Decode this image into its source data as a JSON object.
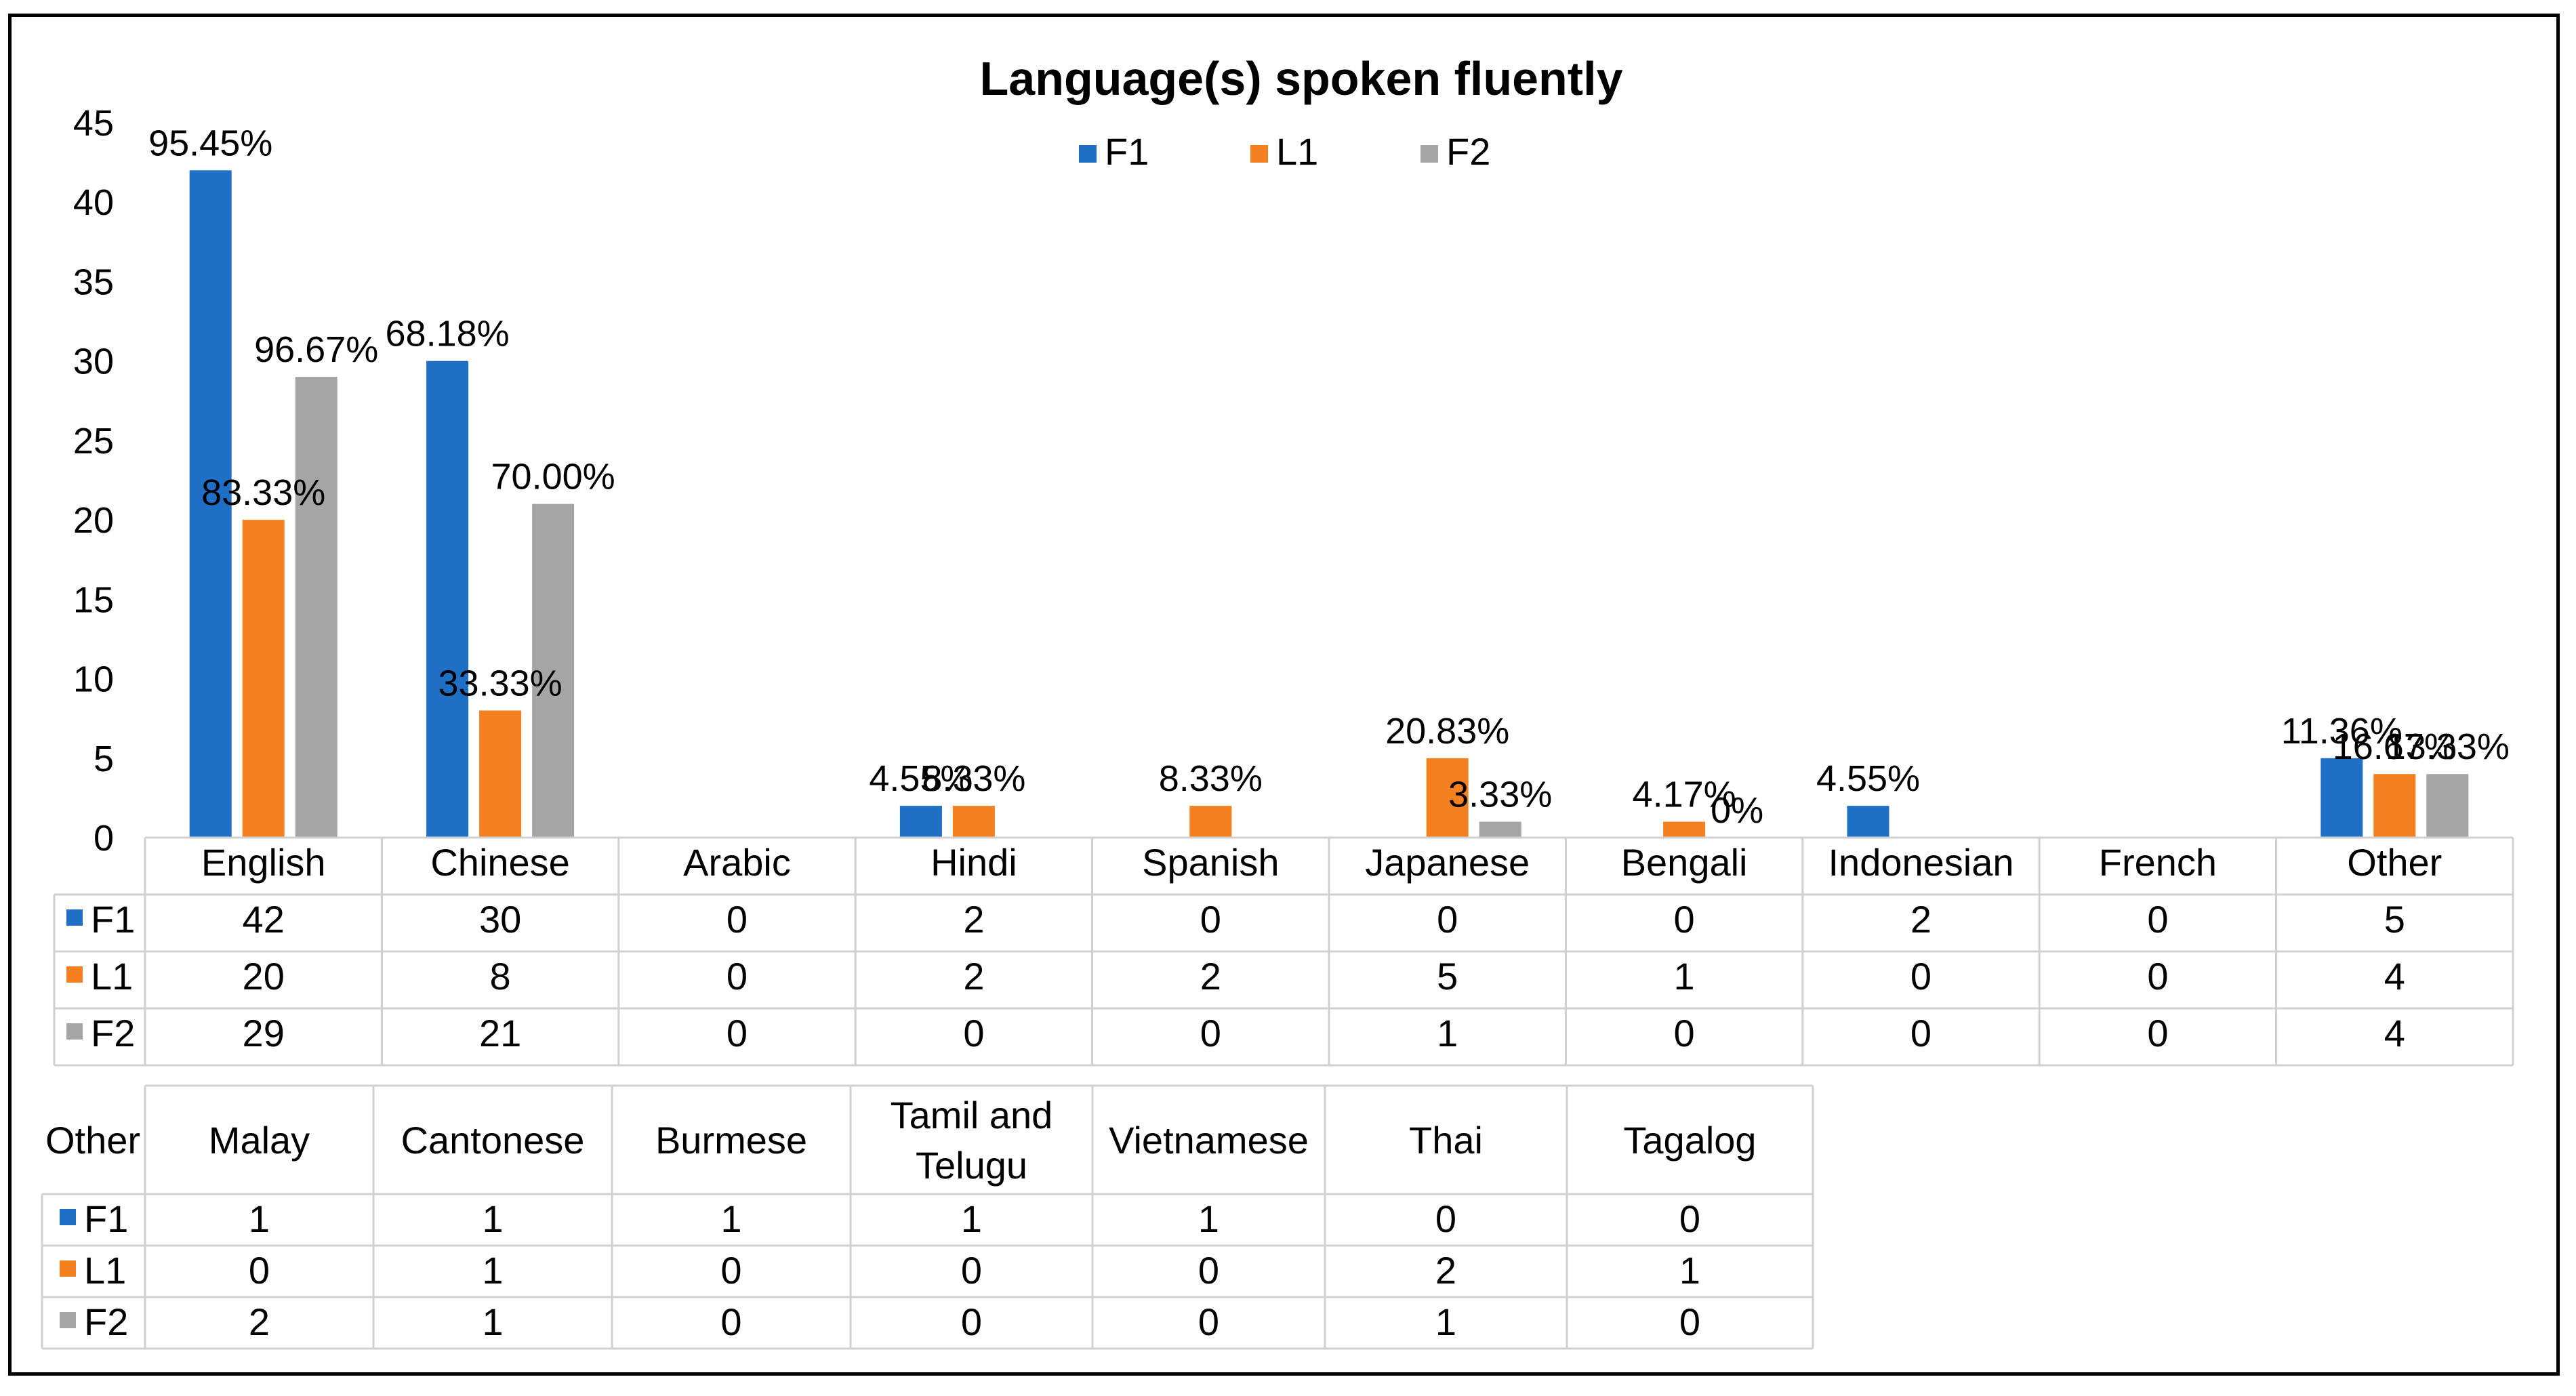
{
  "chart_data": {
    "type": "bar",
    "title": "Language(s) spoken fluently",
    "categories": [
      "English",
      "Chinese",
      "Arabic",
      "Hindi",
      "Spanish",
      "Japanese",
      "Bengali",
      "Indonesian",
      "French",
      "Other"
    ],
    "ylim": [
      0,
      45
    ],
    "yticks": [
      0,
      5,
      10,
      15,
      20,
      25,
      30,
      35,
      40,
      45
    ],
    "legend_position": "top-center",
    "grid": false,
    "series": [
      {
        "name": "F1",
        "color": "#1f6fc6",
        "values": [
          42,
          30,
          0,
          2,
          0,
          0,
          0,
          2,
          0,
          5
        ],
        "labels": [
          "95.45%",
          "68.18%",
          "",
          "4.55%",
          "",
          "",
          "",
          "4.55%",
          "",
          "11.36%"
        ]
      },
      {
        "name": "L1",
        "color": "#f5801f",
        "values": [
          20,
          8,
          0,
          2,
          2,
          5,
          1,
          0,
          0,
          4
        ],
        "labels": [
          "83.33%",
          "33.33%",
          "",
          "8.33%",
          "8.33%",
          "20.83%",
          "4.17%",
          "",
          "",
          "16.67%"
        ]
      },
      {
        "name": "F2",
        "color": "#a5a5a5",
        "values": [
          29,
          21,
          0,
          0,
          0,
          1,
          0,
          0,
          0,
          4
        ],
        "labels": [
          "96.67%",
          "70.00%",
          "",
          "",
          "",
          "3.33%",
          "0%",
          "",
          "",
          "13.33%"
        ]
      }
    ]
  },
  "other_table": {
    "corner": "Other",
    "columns": [
      "Malay",
      "Cantonese",
      "Burmese",
      "Tamil and\nTelugu",
      "Vietnamese",
      "Thai",
      "Tagalog"
    ],
    "rows": [
      {
        "name": "F1",
        "color": "#1f6fc6",
        "values": [
          1,
          1,
          1,
          1,
          1,
          0,
          0
        ]
      },
      {
        "name": "L1",
        "color": "#f5801f",
        "values": [
          0,
          1,
          0,
          0,
          0,
          2,
          1
        ]
      },
      {
        "name": "F2",
        "color": "#a5a5a5",
        "values": [
          2,
          1,
          0,
          0,
          0,
          1,
          0
        ]
      }
    ]
  }
}
